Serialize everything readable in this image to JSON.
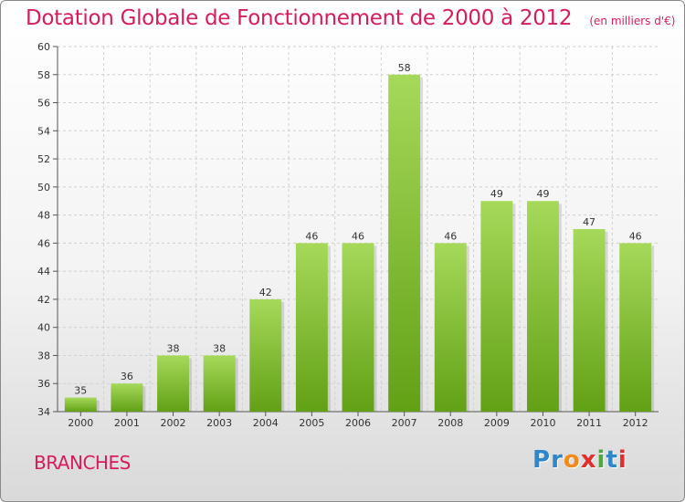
{
  "header": {
    "title": "Dotation Globale de Fonctionnement de 2000 à 2012",
    "subtitle": "(en milliers d'€)"
  },
  "footer": {
    "town": "BRANCHES",
    "logo_letters": [
      "P",
      "r",
      "o",
      "x",
      "i",
      "t",
      "i"
    ]
  },
  "colors": {
    "title": "#d81b5c",
    "bar_top": "#a6d95a",
    "bar_bottom": "#62a016",
    "logo": [
      "#2f86c8",
      "#2f86c8",
      "#f08a1d",
      "#e0302e",
      "#4fa83c",
      "#2f86c8",
      "#e0302e"
    ]
  },
  "chart_data": {
    "type": "bar",
    "categories": [
      "2000",
      "2001",
      "2002",
      "2003",
      "2004",
      "2005",
      "2006",
      "2007",
      "2008",
      "2009",
      "2010",
      "2011",
      "2012"
    ],
    "values": [
      35,
      36,
      38,
      38,
      42,
      46,
      46,
      58,
      46,
      49,
      49,
      47,
      46
    ],
    "ylim": [
      34,
      60
    ],
    "yticks": [
      34,
      36,
      38,
      40,
      42,
      44,
      46,
      48,
      50,
      52,
      54,
      56,
      58,
      60
    ],
    "grid": true,
    "legend": "none"
  }
}
